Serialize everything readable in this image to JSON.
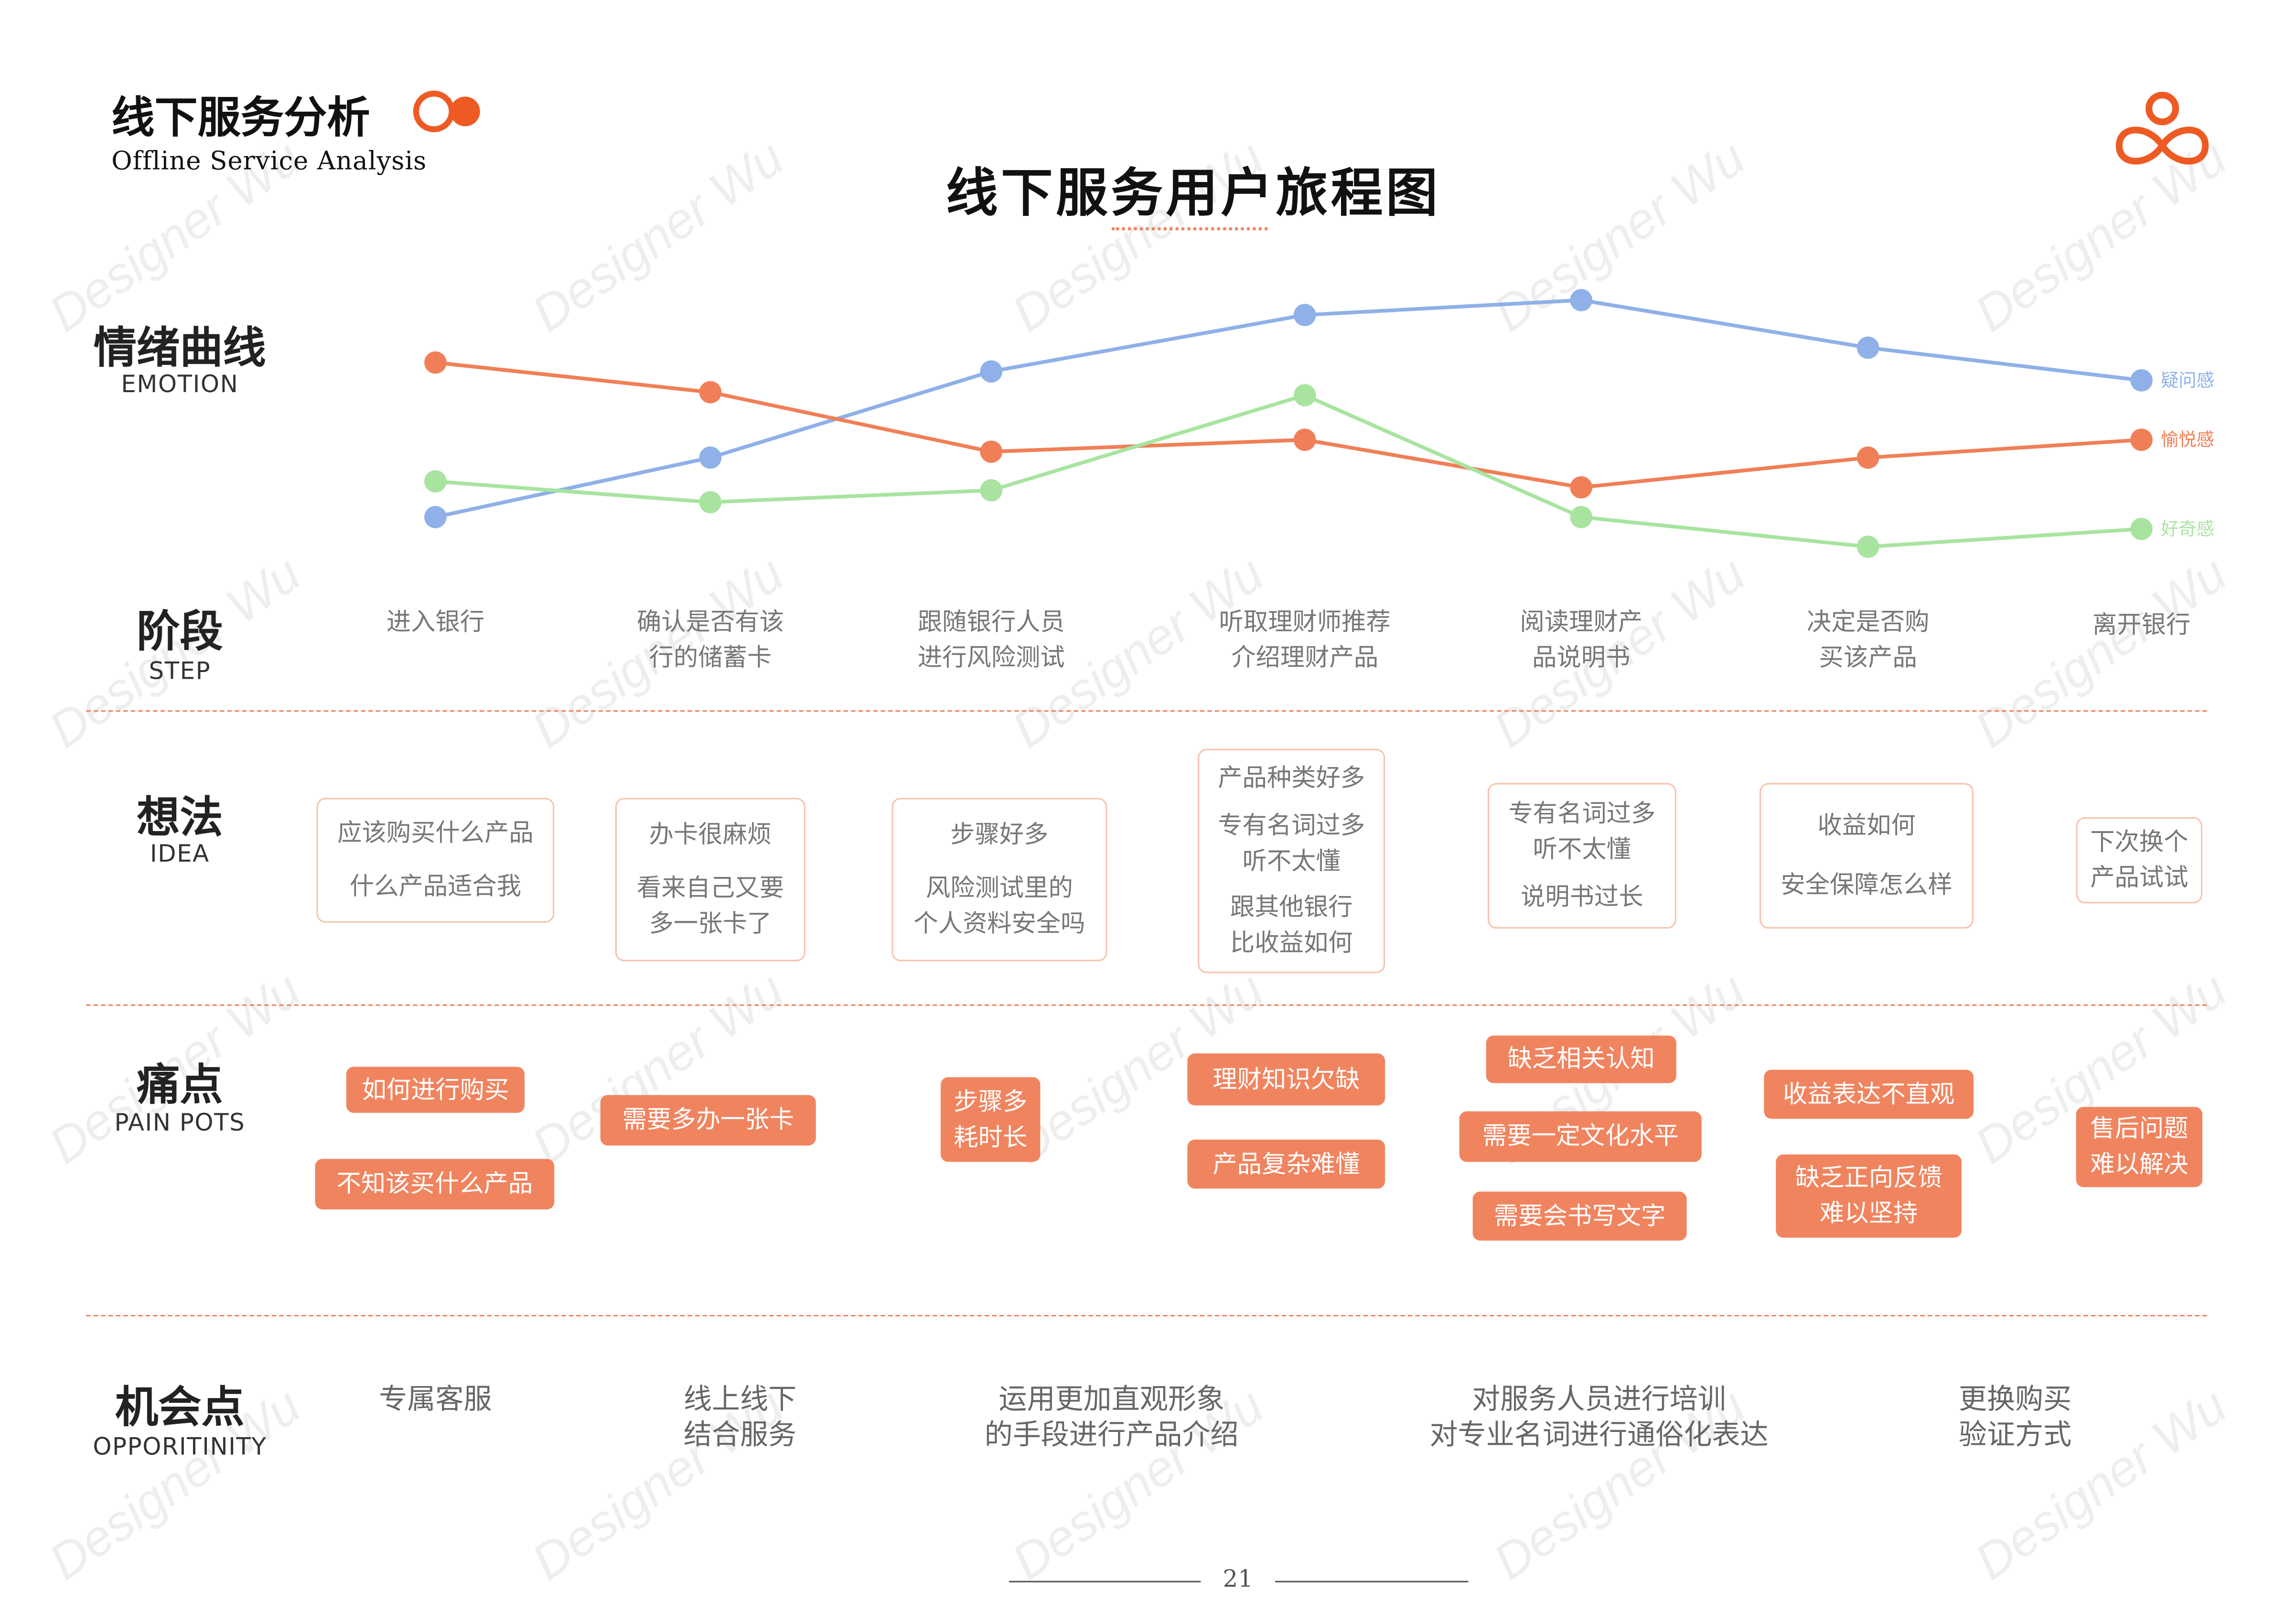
{
  "header": {
    "section_title": "线下服务分析",
    "section_subtitle": "Offline Service Analysis",
    "page_title": "线下服务用户旅程图",
    "brand_color": "#ee5a24",
    "accent_color": "#f0845f"
  },
  "watermark": "Designer Wu",
  "sections": {
    "emotion": {
      "zh": "情绪曲线",
      "en": "EMOTION"
    },
    "step": {
      "zh": "阶段",
      "en": "STEP"
    },
    "idea": {
      "zh": "想法",
      "en": "IDEA"
    },
    "pain": {
      "zh": "痛点",
      "en": "PAIN POTS"
    },
    "opportunity": {
      "zh": "机会点",
      "en": "OPPORITINITY"
    }
  },
  "steps": [
    [
      "进入银行"
    ],
    [
      "确认是否有该",
      "行的储蓄卡"
    ],
    [
      "跟随银行人员",
      "进行风险测试"
    ],
    [
      "听取理财师推荐",
      "介绍理财产品"
    ],
    [
      "阅读理财产",
      "品说明书"
    ],
    [
      "决定是否购",
      "买该产品"
    ],
    [
      "离开银行"
    ]
  ],
  "chart_data": {
    "type": "line",
    "categories": [
      "进入银行",
      "确认是否有该行的储蓄卡",
      "跟随银行人员进行风险测试",
      "听取理财师推荐介绍理财产品",
      "阅读理财产品说明书",
      "决定是否购买该产品",
      "离开银行"
    ],
    "ylim": [
      0,
      100
    ],
    "grid": false,
    "legend": "right (end-of-line labels)",
    "series": [
      {
        "name": "疑问感",
        "color": "#8fb0e8",
        "values": [
          26,
          46,
          75,
          94,
          99,
          83,
          72
        ]
      },
      {
        "name": "愉悦感",
        "color": "#f07f57",
        "values": [
          78,
          68,
          48,
          52,
          36,
          46,
          52
        ]
      },
      {
        "name": "好奇感",
        "color": "#a8e4a0",
        "values": [
          38,
          31,
          35,
          67,
          26,
          16,
          22
        ]
      }
    ]
  },
  "ideas": [
    [
      [
        "应该购买什么产品"
      ],
      [
        "什么产品适合我"
      ]
    ],
    [
      [
        "办卡很麻烦"
      ],
      [
        "看来自己又要",
        "多一张卡了"
      ]
    ],
    [
      [
        "步骤好多"
      ],
      [
        "风险测试里的",
        "个人资料安全吗"
      ]
    ],
    [
      [
        "产品种类好多"
      ],
      [
        "专有名词过多",
        "听不太懂"
      ],
      [
        "跟其他银行",
        "比收益如何"
      ]
    ],
    [
      [
        "专有名词过多",
        "听不太懂"
      ],
      [
        "说明书过长"
      ]
    ],
    [
      [
        "收益如何"
      ],
      [
        "安全保障怎么样"
      ]
    ],
    [
      [
        "下次换个",
        "产品试试"
      ]
    ]
  ],
  "pains": [
    [
      "如何进行购买"
    ],
    [
      "不知该买什么产品"
    ],
    [
      "需要多办一张卡"
    ],
    [
      "步骤多",
      "耗时长"
    ],
    [
      "理财知识欠缺"
    ],
    [
      "产品复杂难懂"
    ],
    [
      "缺乏相关认知"
    ],
    [
      "需要一定文化水平"
    ],
    [
      "需要会书写文字"
    ],
    [
      "收益表达不直观"
    ],
    [
      "缺乏正向反馈",
      "难以坚持"
    ],
    [
      "售后问题",
      "难以解决"
    ]
  ],
  "opportunities": [
    [
      "专属客服"
    ],
    [
      "线上线下",
      "结合服务"
    ],
    [
      "运用更加直观形象",
      "的手段进行产品介绍"
    ],
    [
      "对服务人员进行培训",
      "对专业名词进行通俗化表达"
    ],
    [
      "更换购买",
      "验证方式"
    ]
  ],
  "footer": {
    "page_number": "21"
  }
}
